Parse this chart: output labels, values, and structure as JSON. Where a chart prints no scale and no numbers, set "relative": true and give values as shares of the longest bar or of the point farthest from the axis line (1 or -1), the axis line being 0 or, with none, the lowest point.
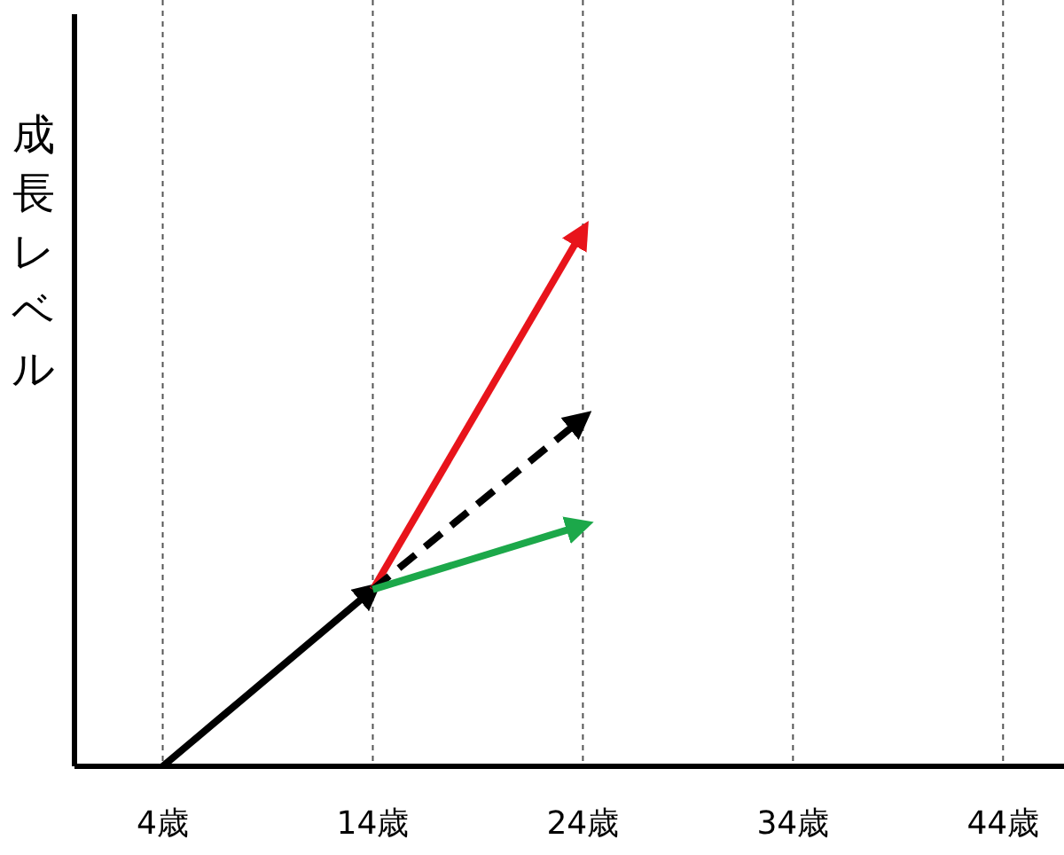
{
  "chart_data": {
    "type": "line",
    "ylabel": "成長レベル",
    "relative": true,
    "xlim": [
      -0.2,
      46.9
    ],
    "xticks": [
      {
        "value": 4,
        "label": "4歳"
      },
      {
        "value": 14,
        "label": "14歳"
      },
      {
        "value": 24,
        "label": "24歳"
      },
      {
        "value": 34,
        "label": "34歳"
      },
      {
        "value": 44,
        "label": "44歳"
      }
    ],
    "grid": "x",
    "marker": "none",
    "series": [
      {
        "color": "#000000",
        "x": [
          4,
          14
        ],
        "values": [
          0,
          0.33
        ],
        "line_style": "solid"
      },
      {
        "color": "#e8141b",
        "x": [
          14,
          24
        ],
        "values": [
          0.33,
          1
        ],
        "line_style": "solid"
      },
      {
        "color": "#000000",
        "x": [
          14,
          24
        ],
        "values": [
          0.33,
          0.65
        ],
        "line_style": "dashed"
      },
      {
        "color": "#1ca84a",
        "x": [
          14,
          24
        ],
        "values": [
          0.33,
          0.45
        ],
        "line_style": "solid"
      }
    ]
  }
}
